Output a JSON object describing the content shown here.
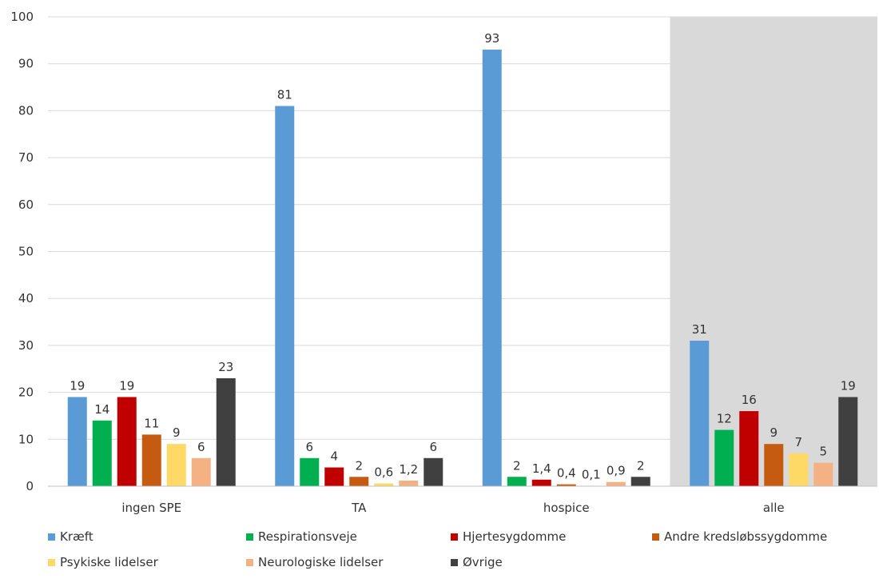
{
  "chart_data": {
    "type": "bar",
    "categories": [
      "ingen SPE",
      "TA",
      "hospice",
      "alle"
    ],
    "ylim": [
      0,
      100
    ],
    "yticks": [
      "0",
      "10",
      "20",
      "30",
      "40",
      "50",
      "60",
      "70",
      "80",
      "90",
      "100"
    ],
    "grid": true,
    "legend_position": "bottom",
    "highlighted_category": "alle",
    "highlight_color": "#d9d9d9",
    "series": [
      {
        "name": "Kræft",
        "color": "#5b9bd5",
        "values": [
          19,
          81,
          93,
          31
        ],
        "labels": [
          "19",
          "81",
          "93",
          "31"
        ]
      },
      {
        "name": "Respirationsveje",
        "color": "#00b050",
        "values": [
          14,
          6,
          2,
          12
        ],
        "labels": [
          "14",
          "6",
          "2",
          "12"
        ]
      },
      {
        "name": "Hjertesygdomme",
        "color": "#c00000",
        "values": [
          19,
          4,
          1.4,
          16
        ],
        "labels": [
          "19",
          "4",
          "1,4",
          "16"
        ]
      },
      {
        "name": "Andre kredsløbssygdomme",
        "color": "#c55a11",
        "values": [
          11,
          2,
          0.4,
          9
        ],
        "labels": [
          "11",
          "2",
          "0,4",
          "9"
        ]
      },
      {
        "name": "Psykiske lidelser",
        "color": "#ffd966",
        "values": [
          9,
          0.6,
          0.1,
          7
        ],
        "labels": [
          "9",
          "0,6",
          "0,1",
          "7"
        ]
      },
      {
        "name": "Neurologiske lidelser",
        "color": "#f4b183",
        "values": [
          6,
          1.2,
          0.9,
          5
        ],
        "labels": [
          "6",
          "1,2",
          "0,9",
          "5"
        ]
      },
      {
        "name": "Øvrige",
        "color": "#404040",
        "values": [
          23,
          6,
          2,
          19
        ],
        "labels": [
          "23",
          "6",
          "2",
          "19"
        ]
      }
    ]
  }
}
